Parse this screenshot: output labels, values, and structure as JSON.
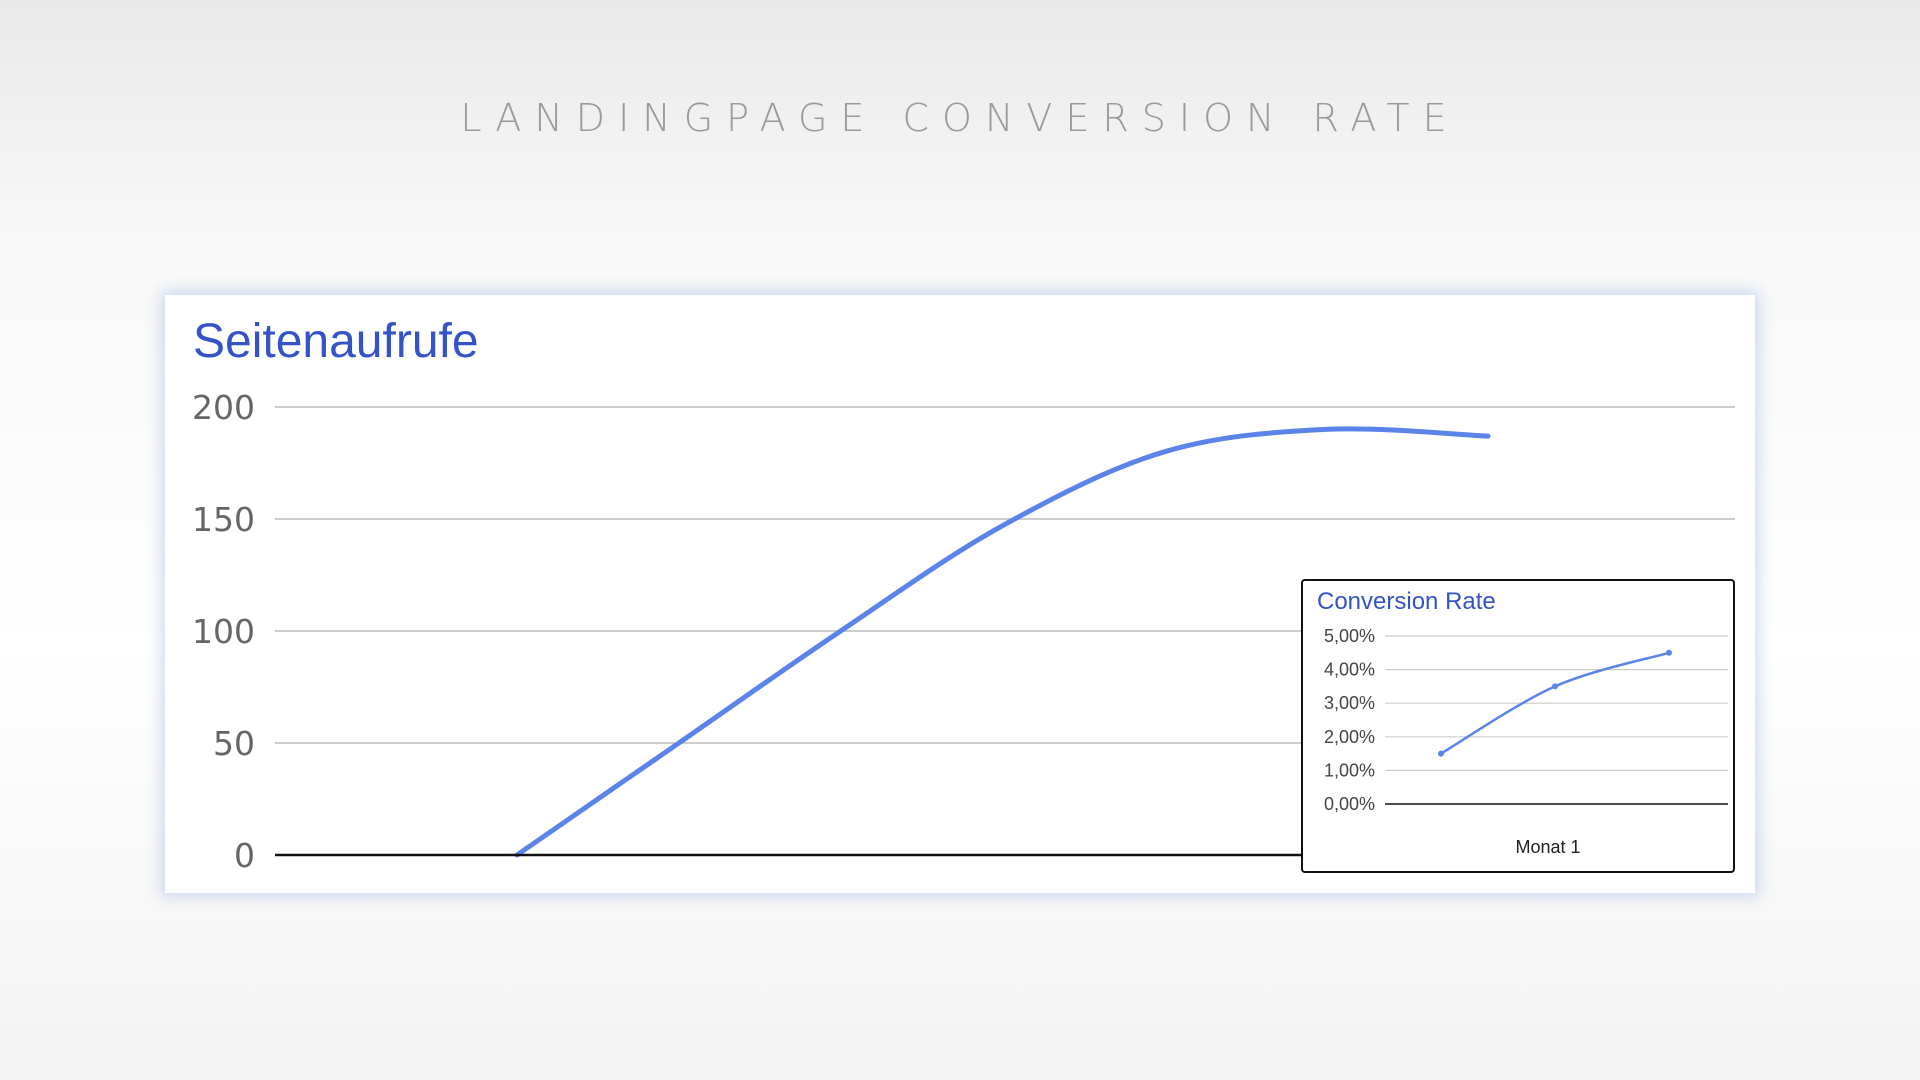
{
  "page": {
    "title": "LANDINGPAGE CONVERSION RATE"
  },
  "colors": {
    "line": "#5b84ea",
    "title": "#3553c9",
    "grid": "#cccccc",
    "axis": "#111111"
  },
  "chart_data": [
    {
      "type": "line",
      "title": "Seitenaufrufe",
      "xlabel": "",
      "ylabel": "",
      "ylim": [
        0,
        200
      ],
      "xlim": [
        0,
        10
      ],
      "yticks": [
        "0",
        "50",
        "100",
        "150",
        "200"
      ],
      "ytick_values": [
        0,
        50,
        100,
        150,
        200
      ],
      "grid": true,
      "smooth": true,
      "x": [
        0,
        1,
        2,
        3,
        4,
        5,
        6
      ],
      "y": [
        0,
        50,
        100,
        147,
        180,
        190,
        187
      ],
      "series": [
        {
          "name": "",
          "values": [
            0,
            50,
            100,
            147,
            180,
            190,
            187
          ]
        }
      ]
    },
    {
      "type": "line",
      "title": "Conversion Rate",
      "xlabel": "Monat 1",
      "ylabel": "",
      "ylim": [
        0,
        5
      ],
      "yticks": [
        "5,00%",
        "4,00%",
        "3,00%",
        "2,00%",
        "1,00%",
        "0,00%"
      ],
      "ytick_values": [
        5,
        4,
        3,
        2,
        1,
        0
      ],
      "grid": true,
      "markers": true,
      "x": [
        1,
        2,
        3
      ],
      "y": [
        1.5,
        3.5,
        4.5
      ],
      "series": [
        {
          "name": "",
          "values": [
            1.5,
            3.5,
            4.5
          ]
        }
      ]
    }
  ]
}
